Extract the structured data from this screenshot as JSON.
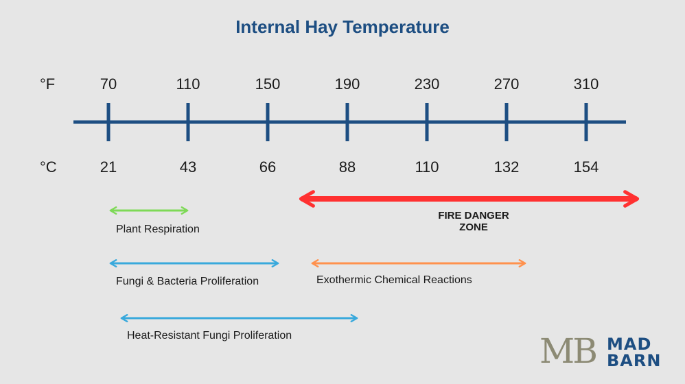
{
  "title": "Internal Hay Temperature",
  "scale": {
    "fahrenheit_unit": "°F",
    "celsius_unit": "°C",
    "fahrenheit": [
      "70",
      "110",
      "150",
      "190",
      "230",
      "270",
      "310"
    ],
    "celsius": [
      "21",
      "43",
      "66",
      "88",
      "110",
      "132",
      "154"
    ]
  },
  "ranges": [
    {
      "label": "Plant Respiration",
      "color": "#7ed957"
    },
    {
      "label": "Fungi & Bacteria Proliferation",
      "color": "#39a9dc"
    },
    {
      "label": "Exothermic Chemical Reactions",
      "color": "#ff914d"
    },
    {
      "label": "Heat-Resistant Fungi Proliferation",
      "color": "#39a9dc"
    }
  ],
  "danger_zone": {
    "label": "FIRE DANGER ZONE",
    "color": "#ff3131"
  },
  "axis_color": "#1d4e82",
  "logo": {
    "mark": "MB",
    "line1": "MAD",
    "line2": "BARN"
  }
}
